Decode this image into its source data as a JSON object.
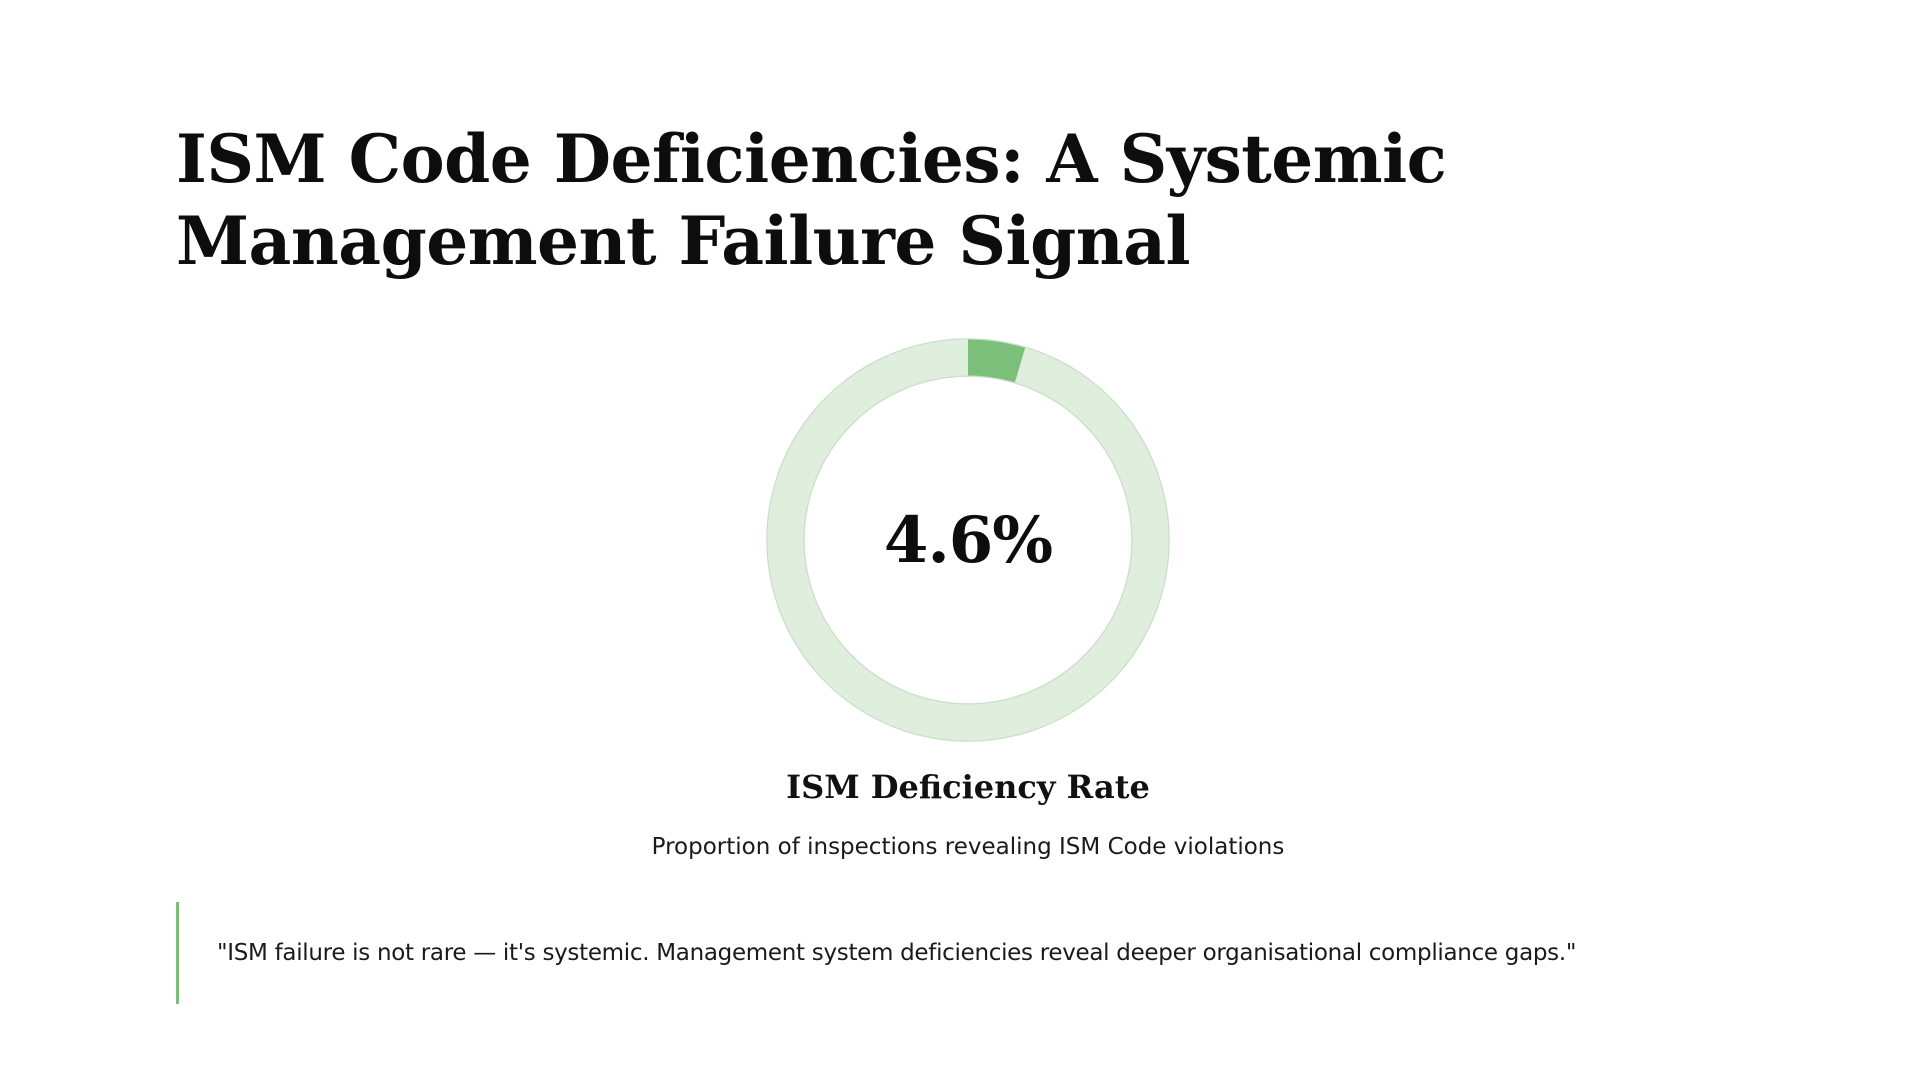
{
  "slide": {
    "title": "ISM Code Deficiencies: A Systemic Management Failure Signal",
    "quote": "\"ISM failure is not rare — it's systemic. Management system deficiencies reveal deeper organisational compliance gaps.\""
  },
  "colors": {
    "accent": "#7cbf7a",
    "track": "#dfeedd",
    "track_border": "#c9dfc7"
  },
  "chart_data": {
    "type": "pie",
    "style": "donut",
    "value": 4.6,
    "max": 100,
    "center_label": "4.6%",
    "label": "ISM Deficiency Rate",
    "description": "Proportion of inspections revealing ISM Code violations"
  }
}
